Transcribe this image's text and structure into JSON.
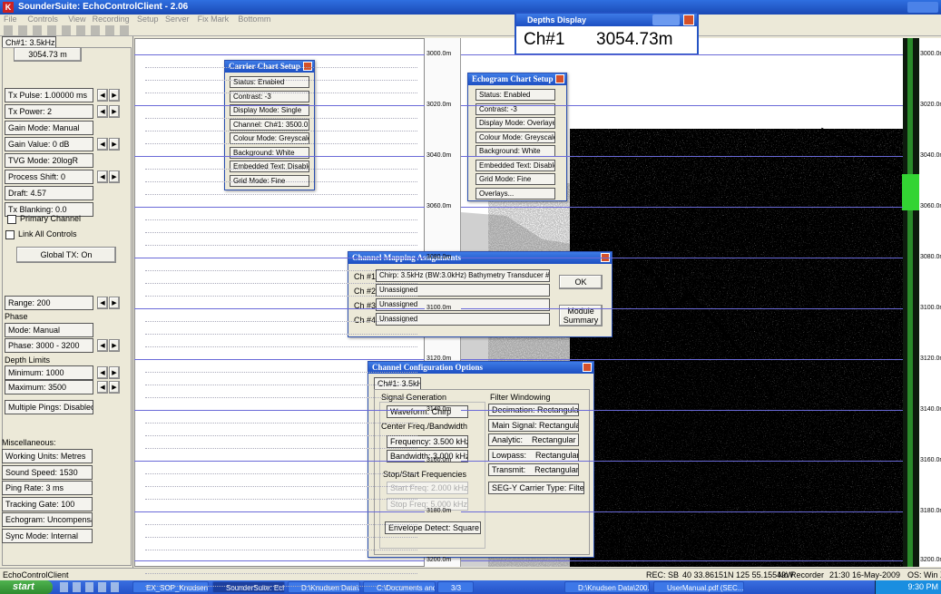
{
  "window": {
    "title": "SounderSuite: EchoControlClient - 2.06",
    "menu": [
      "File",
      "Controls",
      "View",
      "Recording",
      "Setup",
      "Server",
      "Fix Mark",
      "Bottomm"
    ]
  },
  "depth_display": {
    "title": "Depths Display",
    "channel": "Ch#1",
    "depth": "3054.73m"
  },
  "left_panel": {
    "tab": "Ch#1: 3.5kHz",
    "depth_button": "3054.73 m",
    "params": [
      "Tx Pulse: 1.00000 ms",
      "Tx Power: 2",
      "Gain Mode: Manual",
      "Gain Value: 0 dB",
      "TVG Mode: 20logR",
      "Process Shift: 0",
      "Draft: 4.57",
      "Tx Blanking: 0.0"
    ],
    "primary_channel": "Primary Channel",
    "link_all": "Link All Controls",
    "global_tx": "Global TX: On",
    "range": "Range: 200",
    "phase_label": "Phase",
    "phase_items": [
      "Mode: Manual",
      "Phase: 3000 - 3200"
    ],
    "depth_limits_label": "Depth Limits",
    "depth_items": [
      "Minimum: 1000",
      "Maximum: 3500"
    ],
    "multiple_pings": "Multiple Pings: Disabled",
    "misc_label": "Miscellaneous:",
    "misc_items": [
      "Working Units: Metres",
      "Sound Speed: 1530",
      "Ping Rate: 3 ms",
      "Tracking Gate: 100",
      "Echogram: Uncompensated",
      "Sync Mode: Internal"
    ]
  },
  "depth_labels": [
    "3000.0m",
    "3020.0m",
    "3040.0m",
    "3060.0m",
    "3080.0m",
    "3100.0m",
    "3120.0m",
    "3140.0m",
    "3160.0m",
    "3180.0m",
    "3200.0m"
  ],
  "carrier_setup": {
    "title": "Carrier Chart Setup",
    "items": [
      "Status: Enabled",
      "Contrast: -3",
      "Display Mode: Single",
      "Channel: Ch#1: 3500.0",
      "Colour Mode: Greyscale",
      "Background: White",
      "Embedded Text: Disabled",
      "Grid Mode: Fine"
    ]
  },
  "echogram_setup": {
    "title": "Echogram Chart Setup",
    "items": [
      "Status: Enabled",
      "Contrast: -3",
      "Display Mode: Overlayed",
      "Colour Mode: Greyscale",
      "Background: White",
      "Embedded Text: Disabled",
      "Grid Mode: Fine",
      "Overlays..."
    ]
  },
  "channel_mapping": {
    "title": "Channel Mapping Assignments",
    "rows": [
      {
        "label": "Ch #1",
        "value": "Chirp: 3.5kHz (BW:3.0kHz) Bathymetry Transducer #1"
      },
      {
        "label": "Ch #2",
        "value": "Unassigned"
      },
      {
        "label": "Ch #3",
        "value": "Unassigned"
      },
      {
        "label": "Ch #4",
        "value": "Unassigned"
      }
    ],
    "ok": "OK",
    "module_summary": "Module Summary"
  },
  "channel_config": {
    "title": "Channel Configuration Options",
    "tab": "Ch#1: 3.5kHz",
    "signal_generation": "Signal Generation",
    "waveform": "Waveform: Chirp",
    "center_label": "Center Freq./Bandwidth",
    "frequency": "Frequency: 3.500 kHz",
    "bandwidth": "Bandwidth: 3.000 kHz",
    "stopstart_label": "Stop/Start Frequencies",
    "start_freq": "Start Freq: 2.000 kHz",
    "stop_freq": "Stop Freq: 5.000 kHz",
    "envelope": "Envelope Detect: Square Law",
    "filter_label": "Filter Windowing",
    "filters": [
      "Decimation: Rectangular",
      "Main Signal: Rectangular",
      "Analytic:    Rectangular",
      "Lowpass:    Rectangular",
      "Transmit:    Rectangular"
    ],
    "segy": "SEG-Y Carrier Type: Filtered"
  },
  "status_bar": {
    "app": "EchoControlClient",
    "rec": "REC: SB",
    "position": "40 33.86151N  125 55.15549W",
    "recorder": "No Recorder",
    "time": "21:30  16-May-2009",
    "os": "OS: Win XP"
  },
  "taskbar": {
    "start": "start",
    "items": [
      "EX_SOP_KnudsenSBP...",
      "SounderSuite: EchoC...",
      "D:\\Knudsen Data\\2009",
      "C:\\Documents and Se...",
      "3/3",
      "D:\\Knudsen Data\\200...",
      "UserManual.pdf (SEC..."
    ],
    "clock": "9:30 PM"
  }
}
